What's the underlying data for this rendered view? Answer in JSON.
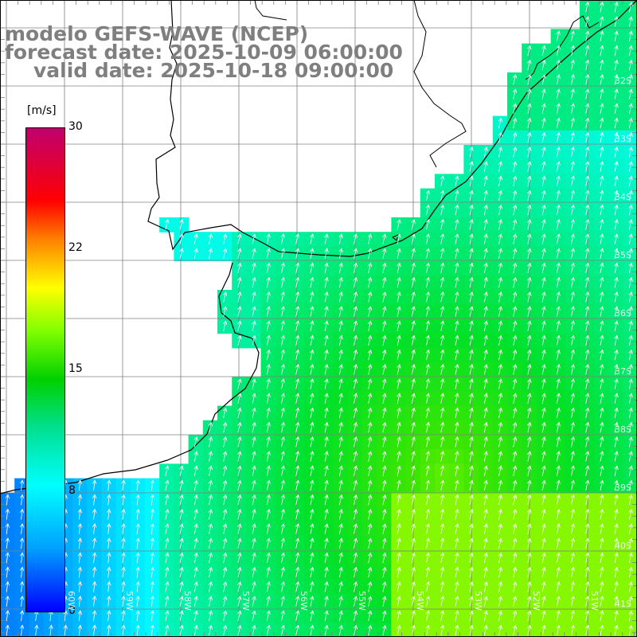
{
  "header": {
    "line1": "modelo GEFS-WAVE (NCEP)",
    "line2": "forecast date: 2025-10-09 06:00:00",
    "line3": "valid date: 2025-10-18 09:00:00"
  },
  "colorbar": {
    "unit": "[m/s]",
    "ticks": [
      "30",
      "22",
      "15",
      "8",
      "0"
    ]
  },
  "lat_labels": [
    "32S",
    "33S",
    "34S",
    "35S",
    "36S",
    "37S",
    "38S",
    "39S",
    "40S",
    "41S"
  ],
  "lon_labels": [
    "60W",
    "59W",
    "58W",
    "57W",
    "56W",
    "55W",
    "54W",
    "53W",
    "52W",
    "51W"
  ],
  "colors": {
    "land": "#ffffff",
    "grid": "#808080",
    "coast": "#000000",
    "arrows": "#ffffff",
    "title": "#7f7f7f"
  }
}
